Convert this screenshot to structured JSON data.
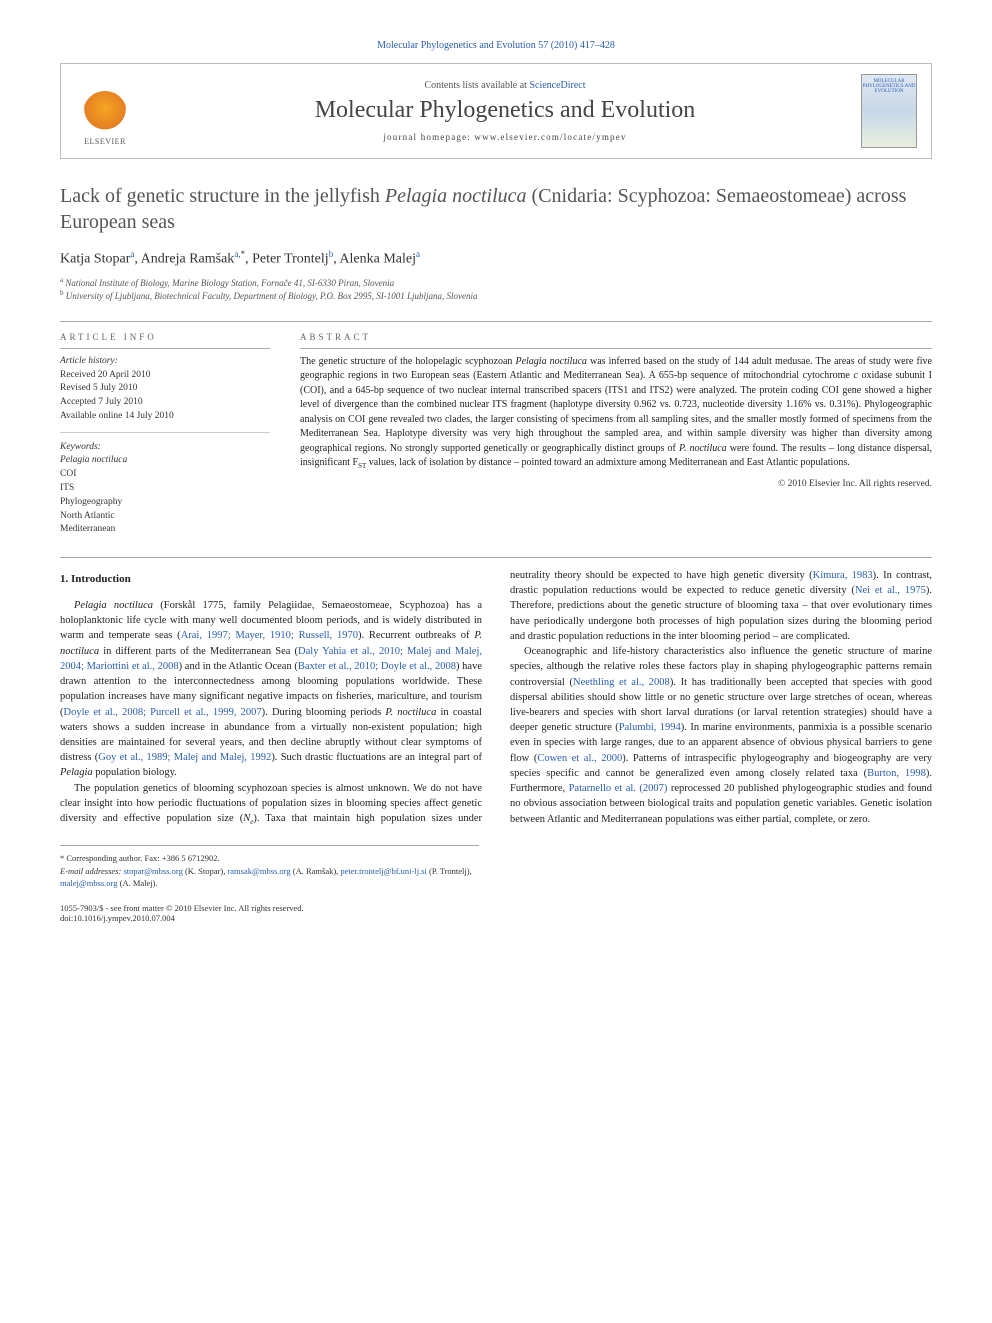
{
  "journal_ref": {
    "prefix": "Molecular Phylogenetics and Evolution 57 (2010) 417–428",
    "link_label": "Molecular Phylogenetics and Evolution"
  },
  "header": {
    "elsevier_label": "ELSEVIER",
    "contents_prefix": "Contents lists available at ",
    "contents_link": "ScienceDirect",
    "journal_title": "Molecular Phylogenetics and Evolution",
    "homepage": "journal homepage: www.elsevier.com/locate/ympev",
    "cover_text": "MOLECULAR PHYLOGENETICS AND EVOLUTION"
  },
  "title": {
    "pre": "Lack of genetic structure in the jellyfish ",
    "species": "Pelagia noctiluca",
    "post": " (Cnidaria: Scyphozoa: Semaeostomeae) across European seas"
  },
  "authors": {
    "a1_name": "Katja Stopar",
    "a1_aff": "a",
    "a2_name": "Andreja Ramšak",
    "a2_aff": "a,",
    "a2_star": "*",
    "a3_name": "Peter Trontelj",
    "a3_aff": "b",
    "a4_name": "Alenka Malej",
    "a4_aff": "a"
  },
  "affiliations": {
    "a": "National Institute of Biology, Marine Biology Station, Fornače 41, SI-6330 Piran, Slovenia",
    "b": "University of Ljubljana, Biotechnical Faculty, Department of Biology, P.O. Box 2995, SI-1001 Ljubljana, Slovenia"
  },
  "info": {
    "heading": "ARTICLE INFO",
    "history_label": "Article history:",
    "received": "Received 20 April 2010",
    "revised": "Revised 5 July 2010",
    "accepted": "Accepted 7 July 2010",
    "online": "Available online 14 July 2010",
    "keywords_label": "Keywords:",
    "kw1": "Pelagia noctiluca",
    "kw2": "COI",
    "kw3": "ITS",
    "kw4": "Phylogeography",
    "kw5": "North Atlantic",
    "kw6": "Mediterranean"
  },
  "abstract": {
    "heading": "ABSTRACT",
    "p1a": "The genetic structure of the holopelagic scyphozoan ",
    "p1_species": "Pelagia noctiluca",
    "p1b": " was inferred based on the study of 144 adult medusae. The areas of study were five geographic regions in two European seas (Eastern Atlantic and Mediterranean Sea). A 655-bp sequence of mitochondrial cytochrome ",
    "p1c_it": "c",
    "p1d": " oxidase subunit I (COI), and a 645-bp sequence of two nuclear internal transcribed spacers (ITS1 and ITS2) were analyzed. The protein coding COI gene showed a higher level of divergence than the combined nuclear ITS fragment (haplotype diversity 0.962 vs. 0.723, nucleotide diversity 1.16% vs. 0.31%). Phylogeographic analysis on COI gene revealed two clades, the larger consisting of specimens from all sampling sites, and the smaller mostly formed of specimens from the Mediterranean Sea. Haplotype diversity was very high throughout the sampled area, and within sample diversity was higher than diversity among geographical regions. No strongly supported genetically or geographically distinct groups of ",
    "p1e_species": "P. noctiluca",
    "p1f": " were found. The results – long distance dispersal, insignificant F",
    "p1g_sub": "ST",
    "p1h": " values, lack of isolation by distance – pointed toward an admixture among Mediterranean and East Atlantic populations.",
    "copyright": "© 2010 Elsevier Inc. All rights reserved."
  },
  "body": {
    "h1": "1. Introduction",
    "p1a": "Pelagia noctiluca",
    "p1b": " (Forskål 1775, family Pelagiidae, Semaeostomeae, Scyphozoa) has a holoplanktonic life cycle with many well documented bloom periods, and is widely distributed in warm and temperate seas (",
    "p1c": "Arai, 1997; Mayer, 1910; Russell, 1970",
    "p1d": "). Recurrent outbreaks of ",
    "p1e": "P. noctiluca",
    "p1f": " in different parts of the Mediterranean Sea (",
    "p1g": "Daly Yahia et al., 2010; Malej and Malej, 2004; Mariottini et al., 2008",
    "p1h": ") and in the Atlantic Ocean (",
    "p1i": "Baxter et al., 2010; Doyle et al., 2008",
    "p1j": ") have drawn attention to the interconnectedness among blooming populations worldwide. These population increases have many significant negative impacts on fisheries, mariculture, and tourism (",
    "p1k": "Doyle et al., 2008; Purcell et al., 1999, 2007",
    "p1l": "). During blooming periods ",
    "p1m": "P. noctiluca",
    "p1n": " in coastal waters shows a sudden increase in abundance from a virtually non-existent population; high densities are maintained for several years, and then decline abruptly without clear symptoms of distress (",
    "p1o": "Goy et al., 1989; Malej and Malej, 1992",
    "p1p": "). Such drastic fluctuations are an integral part of ",
    "p1q": "Pelagia",
    "p1r": " population biology.",
    "p2a": "The population genetics of blooming scyphozoan species is almost unknown. We do not have clear insight into how periodic fluctuations of population sizes in blooming species affect genetic diversity and effective population size (",
    "p2b": "N",
    "p2c": "e",
    "p2d": "). Taxa that maintain high population sizes under neutrality theory should be expected to have high genetic diversity (",
    "p2e": "Kimura, 1983",
    "p2f": "). In contrast, drastic population reductions would be expected to reduce genetic diversity (",
    "p2g": "Nei et al., 1975",
    "p2h": "). Therefore, predictions about the genetic structure of blooming taxa – that over evolutionary times have periodically undergone both processes of high population sizes during the blooming period and drastic population reductions in the inter blooming period – are complicated.",
    "p3a": "Oceanographic and life-history characteristics also influence the genetic structure of marine species, although the relative roles these factors play in shaping phylogeographic patterns remain controversial (",
    "p3b": "Neethling et al., 2008",
    "p3c": "). It has traditionally been accepted that species with good dispersal abilities should show little or no genetic structure over large stretches of ocean, whereas live-bearers and species with short larval durations (or larval retention strategies) should have a deeper genetic structure (",
    "p3d": "Palumbi, 1994",
    "p3e": "). In marine environments, panmixia is a possible scenario even in species with large ranges, due to an apparent absence of obvious physical barriers to gene flow (",
    "p3f": "Cowen et al., 2000",
    "p3g": "). Patterns of intraspecific phylogeography and biogeography are very species specific and cannot be generalized even among closely related taxa (",
    "p3h": "Burton, 1998",
    "p3i": "). Furthermore, ",
    "p3j": "Patarnello et al. (2007)",
    "p3k": " reprocessed 20 published phylogeographic studies and found no obvious association between biological traits and population genetic variables. Genetic isolation between Atlantic and Mediterranean populations was either partial, complete, or zero."
  },
  "footnotes": {
    "corr": "* Corresponding author. Fax: +386 5 6712902.",
    "email_label": "E-mail addresses:",
    "e1": "stopar@mbss.org",
    "n1": " (K. Stopar), ",
    "e2": "ramsak@mbss.org",
    "n2": " (A. Ramšak), ",
    "e3": "peter.trontelj@bf.uni-lj.si",
    "n3": " (P. Trontelj), ",
    "e4": "malej@mbss.org",
    "n4": " (A. Malej)."
  },
  "footer": {
    "issn": "1055-7903/$ - see front matter © 2010 Elsevier Inc. All rights reserved.",
    "doi": "doi:10.1016/j.ympev.2010.07.004"
  }
}
